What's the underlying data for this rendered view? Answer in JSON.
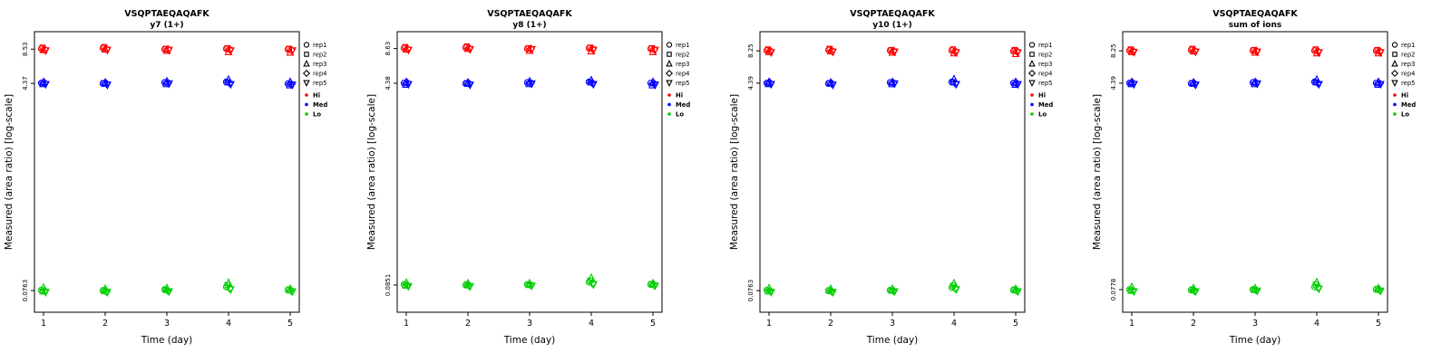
{
  "page": {
    "background": "#FFFFFF"
  },
  "legend": {
    "reps": [
      {
        "label": "rep1",
        "symbol": "circle"
      },
      {
        "label": "rep2",
        "symbol": "square"
      },
      {
        "label": "rep3",
        "symbol": "triangle-up"
      },
      {
        "label": "rep4",
        "symbol": "diamond"
      },
      {
        "label": "rep5",
        "symbol": "triangle-down"
      }
    ],
    "levels": [
      {
        "label": "Hi",
        "color": "#FF0000"
      },
      {
        "label": "Med",
        "color": "#0000FF"
      },
      {
        "label": "Lo",
        "color": "#00CD00"
      }
    ]
  },
  "chart_data": [
    {
      "type": "scatter",
      "title": "VSQPTAEQAQAFK",
      "subtitle": "y7 (1+)",
      "xlabel": "Time (day)",
      "ylabel": "Measured (area ratio) [log-scale]",
      "x": [
        1,
        2,
        3,
        4,
        5
      ],
      "x_ticks": [
        "1",
        "2",
        "3",
        "4",
        "5"
      ],
      "y_scale": "log",
      "ylim": [
        0.05,
        12
      ],
      "y_ticks": [
        {
          "label": "8.53",
          "value": 8.53
        },
        {
          "label": "4.37",
          "value": 4.37
        },
        {
          "label": "0.0763",
          "value": 0.0763
        }
      ],
      "series": [
        {
          "name": "Hi",
          "color": "#FF0000",
          "reps": [
            [
              8.6,
              8.7,
              8.5,
              8.6,
              8.5
            ],
            [
              8.8,
              8.9,
              8.6,
              8.7,
              8.6
            ],
            [
              8.4,
              8.5,
              8.3,
              8.1,
              8.0
            ],
            [
              8.5,
              8.6,
              8.5,
              8.5,
              8.4
            ],
            [
              8.3,
              8.4,
              8.4,
              8.3,
              8.3
            ]
          ]
        },
        {
          "name": "Med",
          "color": "#0000FF",
          "reps": [
            [
              4.4,
              4.35,
              4.45,
              4.5,
              4.35
            ],
            [
              4.3,
              4.4,
              4.3,
              4.45,
              4.2
            ],
            [
              4.5,
              4.45,
              4.55,
              4.7,
              4.5
            ],
            [
              4.4,
              4.35,
              4.4,
              4.4,
              4.3
            ],
            [
              4.3,
              4.25,
              4.35,
              4.3,
              4.25
            ]
          ]
        },
        {
          "name": "Lo",
          "color": "#00CD00",
          "reps": [
            [
              0.077,
              0.076,
              0.078,
              0.082,
              0.077
            ],
            [
              0.075,
              0.077,
              0.077,
              0.085,
              0.078
            ],
            [
              0.081,
              0.079,
              0.08,
              0.089,
              0.079
            ],
            [
              0.076,
              0.075,
              0.076,
              0.08,
              0.076
            ],
            [
              0.074,
              0.074,
              0.075,
              0.078,
              0.075
            ]
          ]
        }
      ]
    },
    {
      "type": "scatter",
      "title": "VSQPTAEQAQAFK",
      "subtitle": "y8 (1+)",
      "xlabel": "Time (day)",
      "ylabel": "Measured (area ratio) [log-scale]",
      "x": [
        1,
        2,
        3,
        4,
        5
      ],
      "x_ticks": [
        "1",
        "2",
        "3",
        "4",
        "5"
      ],
      "y_scale": "log",
      "ylim": [
        0.05,
        12
      ],
      "y_ticks": [
        {
          "label": "8.63",
          "value": 8.63
        },
        {
          "label": "4.38",
          "value": 4.38
        },
        {
          "label": "0.0851",
          "value": 0.0851
        }
      ],
      "series": [
        {
          "name": "Hi",
          "color": "#FF0000",
          "reps": [
            [
              8.7,
              8.8,
              8.6,
              8.7,
              8.6
            ],
            [
              8.9,
              9.0,
              8.7,
              8.8,
              8.7
            ],
            [
              8.5,
              8.6,
              8.3,
              8.2,
              8.1
            ],
            [
              8.6,
              8.7,
              8.6,
              8.6,
              8.5
            ],
            [
              8.4,
              8.5,
              8.5,
              8.4,
              8.4
            ]
          ]
        },
        {
          "name": "Med",
          "color": "#0000FF",
          "reps": [
            [
              4.4,
              4.35,
              4.45,
              4.5,
              4.4
            ],
            [
              4.25,
              4.4,
              4.3,
              4.45,
              4.2
            ],
            [
              4.5,
              4.45,
              4.55,
              4.65,
              4.5
            ],
            [
              4.4,
              4.35,
              4.4,
              4.4,
              4.35
            ],
            [
              4.3,
              4.25,
              4.35,
              4.3,
              4.25
            ]
          ]
        },
        {
          "name": "Lo",
          "color": "#00CD00",
          "reps": [
            [
              0.086,
              0.085,
              0.086,
              0.09,
              0.086
            ],
            [
              0.084,
              0.086,
              0.085,
              0.093,
              0.087
            ],
            [
              0.089,
              0.088,
              0.088,
              0.098,
              0.088
            ],
            [
              0.085,
              0.084,
              0.085,
              0.088,
              0.085
            ],
            [
              0.083,
              0.083,
              0.084,
              0.086,
              0.084
            ]
          ]
        }
      ]
    },
    {
      "type": "scatter",
      "title": "VSQPTAEQAQAFK",
      "subtitle": "y10 (1+)",
      "xlabel": "Time (day)",
      "ylabel": "Measured (area ratio) [log-scale]",
      "x": [
        1,
        2,
        3,
        4,
        5
      ],
      "x_ticks": [
        "1",
        "2",
        "3",
        "4",
        "5"
      ],
      "y_scale": "log",
      "ylim": [
        0.05,
        12
      ],
      "y_ticks": [
        {
          "label": "8.25",
          "value": 8.25
        },
        {
          "label": "4.39",
          "value": 4.39
        },
        {
          "label": "0.0763",
          "value": 0.0763
        }
      ],
      "series": [
        {
          "name": "Hi",
          "color": "#FF0000",
          "reps": [
            [
              8.3,
              8.4,
              8.3,
              8.3,
              8.2
            ],
            [
              8.5,
              8.6,
              8.4,
              8.5,
              8.4
            ],
            [
              8.1,
              8.2,
              8.0,
              7.9,
              7.8
            ],
            [
              8.25,
              8.3,
              8.25,
              8.2,
              8.2
            ],
            [
              8.0,
              8.1,
              8.1,
              8.0,
              8.0
            ]
          ]
        },
        {
          "name": "Med",
          "color": "#0000FF",
          "reps": [
            [
              4.4,
              4.35,
              4.45,
              4.5,
              4.4
            ],
            [
              4.3,
              4.4,
              4.3,
              4.45,
              4.25
            ],
            [
              4.5,
              4.45,
              4.5,
              4.75,
              4.5
            ],
            [
              4.4,
              4.35,
              4.4,
              4.4,
              4.35
            ],
            [
              4.3,
              4.25,
              4.35,
              4.3,
              4.3
            ]
          ]
        },
        {
          "name": "Lo",
          "color": "#00CD00",
          "reps": [
            [
              0.077,
              0.076,
              0.077,
              0.081,
              0.077
            ],
            [
              0.075,
              0.077,
              0.076,
              0.084,
              0.078
            ],
            [
              0.08,
              0.079,
              0.079,
              0.088,
              0.079
            ],
            [
              0.076,
              0.075,
              0.076,
              0.08,
              0.076
            ],
            [
              0.074,
              0.074,
              0.075,
              0.078,
              0.075
            ]
          ]
        }
      ]
    },
    {
      "type": "scatter",
      "title": "VSQPTAEQAQAFK",
      "subtitle": "sum of ions",
      "xlabel": "Time (day)",
      "ylabel": "Measured (area ratio) [log-scale]",
      "x": [
        1,
        2,
        3,
        4,
        5
      ],
      "x_ticks": [
        "1",
        "2",
        "3",
        "4",
        "5"
      ],
      "y_scale": "log",
      "ylim": [
        0.05,
        12
      ],
      "y_ticks": [
        {
          "label": "8.25",
          "value": 8.25
        },
        {
          "label": "4.39",
          "value": 4.39
        },
        {
          "label": "0.0778",
          "value": 0.0778
        }
      ],
      "series": [
        {
          "name": "Hi",
          "color": "#FF0000",
          "reps": [
            [
              8.3,
              8.4,
              8.3,
              8.3,
              8.25
            ],
            [
              8.5,
              8.6,
              8.4,
              8.5,
              8.4
            ],
            [
              8.1,
              8.2,
              8.0,
              7.9,
              7.9
            ],
            [
              8.25,
              8.3,
              8.25,
              8.2,
              8.2
            ],
            [
              8.05,
              8.1,
              8.1,
              8.0,
              8.0
            ]
          ]
        },
        {
          "name": "Med",
          "color": "#0000FF",
          "reps": [
            [
              4.4,
              4.35,
              4.45,
              4.5,
              4.4
            ],
            [
              4.3,
              4.4,
              4.3,
              4.45,
              4.25
            ],
            [
              4.5,
              4.45,
              4.5,
              4.7,
              4.5
            ],
            [
              4.4,
              4.35,
              4.4,
              4.4,
              4.35
            ],
            [
              4.3,
              4.25,
              4.35,
              4.3,
              4.3
            ]
          ]
        },
        {
          "name": "Lo",
          "color": "#00CD00",
          "reps": [
            [
              0.078,
              0.077,
              0.078,
              0.082,
              0.078
            ],
            [
              0.076,
              0.078,
              0.077,
              0.086,
              0.079
            ],
            [
              0.082,
              0.08,
              0.08,
              0.09,
              0.08
            ],
            [
              0.077,
              0.076,
              0.077,
              0.081,
              0.077
            ],
            [
              0.075,
              0.075,
              0.076,
              0.079,
              0.076
            ]
          ]
        }
      ]
    }
  ]
}
